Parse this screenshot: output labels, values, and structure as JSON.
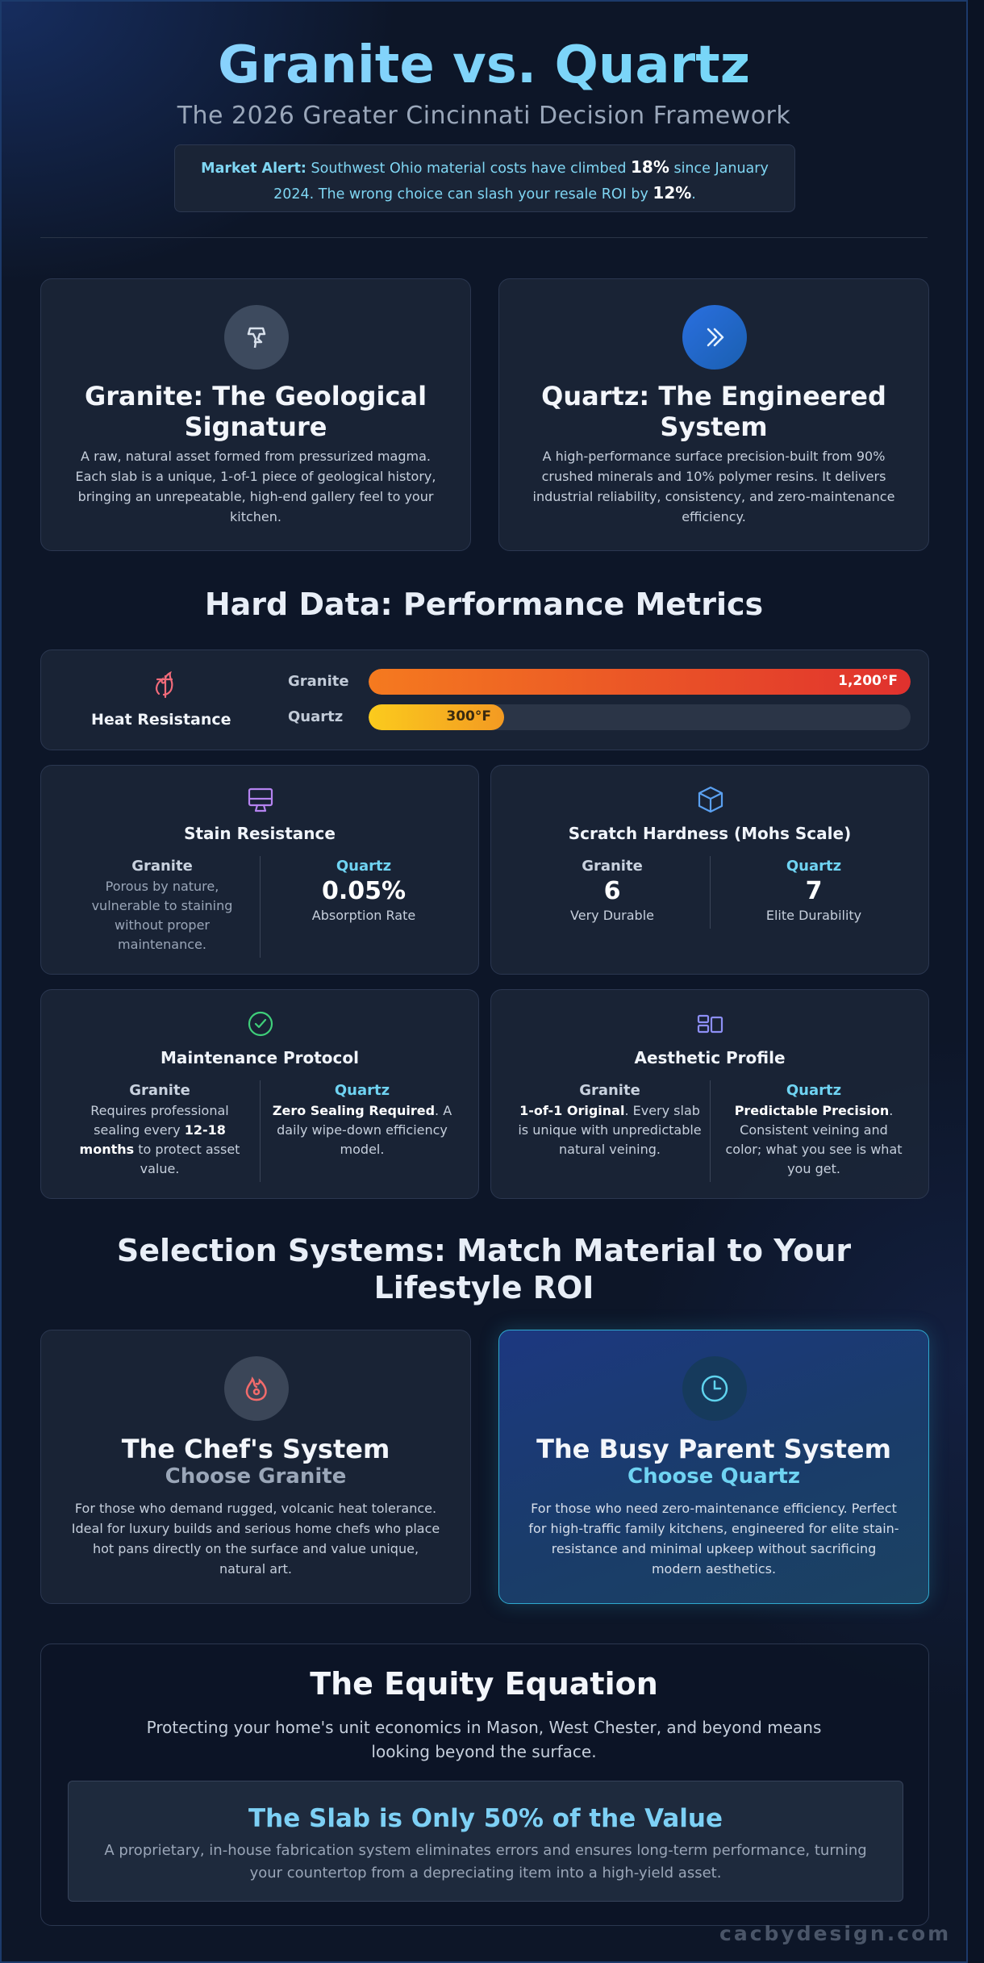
{
  "header": {
    "title": "Granite vs. Quartz",
    "subtitle": "The 2026 Greater Cincinnati Decision Framework",
    "alert": {
      "label": "Market Alert:",
      "text_a": " Southwest Ohio material costs have climbed ",
      "value_a": "18%",
      "text_b": " since January 2024. The wrong choice can slash your resale ROI by ",
      "value_b": "12%",
      "text_c": "."
    }
  },
  "intro": {
    "granite": {
      "icon": "magma-icon",
      "title": "Granite: The Geological Signature",
      "text": "A raw, natural asset formed from pressurized magma. Each slab is a unique, 1-of-1 piece of geological history, bringing an unrepeatable, high-end gallery feel to your kitchen."
    },
    "quartz": {
      "icon": "double-chevron-icon",
      "title": "Quartz: The Engineered System",
      "text": "A high-performance surface precision-built from 90% crushed minerals and 10% polymer resins. It delivers industrial reliability, consistency, and zero-maintenance efficiency."
    }
  },
  "metrics": {
    "title": "Hard Data: Performance Metrics",
    "heat": {
      "icon": "flame-icon",
      "label": "Heat Resistance",
      "granite_label": "Granite",
      "quartz_label": "Quartz",
      "granite_value": "1,200°F",
      "quartz_value": "300°F",
      "granite_fraction": 1.0,
      "quartz_fraction": 0.25
    },
    "stain": {
      "icon": "monitor-icon",
      "title": "Stain Resistance",
      "granite_head": "Granite",
      "granite_text": "Porous by nature, vulnerable to staining without proper maintenance.",
      "quartz_head": "Quartz",
      "quartz_value": "0.05%",
      "quartz_sub": "Absorption Rate"
    },
    "scratch": {
      "icon": "cube-icon",
      "title": "Scratch Hardness (Mohs Scale)",
      "granite_head": "Granite",
      "granite_value": "6",
      "granite_sub": "Very Durable",
      "quartz_head": "Quartz",
      "quartz_value": "7",
      "quartz_sub": "Elite Durability"
    },
    "maintenance": {
      "icon": "check-circle-icon",
      "title": "Maintenance Protocol",
      "granite_head": "Granite",
      "granite_a": "Requires professional sealing every ",
      "granite_b": "12-18 months",
      "granite_c": " to protect asset value.",
      "quartz_head": "Quartz",
      "quartz_a": "Zero Sealing Required",
      "quartz_b": ". A daily wipe-down efficiency model."
    },
    "aesthetic": {
      "icon": "layout-icon",
      "title": "Aesthetic Profile",
      "granite_head": "Granite",
      "granite_a": "1-of-1 Original",
      "granite_b": ". Every slab is unique with unpredictable natural veining.",
      "quartz_head": "Quartz",
      "quartz_a": "Predictable Precision",
      "quartz_b": ". Consistent veining and color; what you see is what you get."
    }
  },
  "selection": {
    "title": "Selection Systems: Match Material to Your Lifestyle ROI",
    "chef": {
      "icon": "flame-swirl-icon",
      "title": "The Chef's System",
      "choose": "Choose Granite",
      "text": "For those who demand rugged, volcanic heat tolerance. Ideal for luxury builds and serious home chefs who place hot pans directly on the surface and value unique, natural art."
    },
    "parent": {
      "icon": "clock-icon",
      "title": "The Busy Parent System",
      "choose": "Choose Quartz",
      "text": "For those who need zero-maintenance efficiency. Perfect for high-traffic family kitchens, engineered for elite stain-resistance and minimal upkeep without sacrificing modern aesthetics."
    }
  },
  "equity": {
    "title": "The Equity Equation",
    "text": "Protecting your home's unit economics in Mason, West Chester, and beyond means looking beyond the surface.",
    "box_title": "The Slab is Only 50% of the Value",
    "box_text": "A proprietary, in-house fabrication system eliminates errors and ensures long-term performance, turning your countertop from a depreciating item into a high-yield asset."
  },
  "watermark": "cacbydesign.com",
  "colors": {
    "accent_cyan": "#6fd3f2",
    "granite_bar": "#ef5a24",
    "quartz_bar": "#f6b81c",
    "parent_card": "#1b3a7a"
  }
}
